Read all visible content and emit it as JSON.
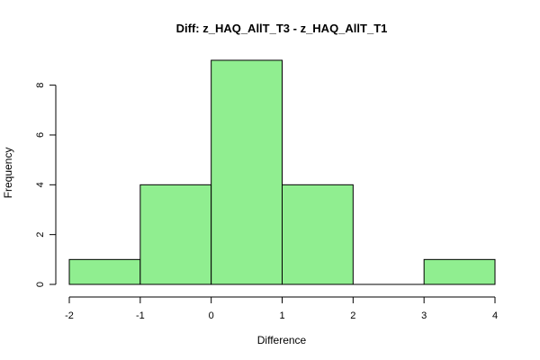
{
  "chart_data": {
    "type": "bar",
    "title": "Diff: z_HAQ_AllT_T3 - z_HAQ_AllT_T1",
    "xlabel": "Difference",
    "ylabel": "Frequency",
    "bins": [
      {
        "x0": -2,
        "x1": -1,
        "count": 1
      },
      {
        "x0": -1,
        "x1": 0,
        "count": 4
      },
      {
        "x0": 0,
        "x1": 1,
        "count": 9
      },
      {
        "x0": 1,
        "x1": 2,
        "count": 4
      },
      {
        "x0": 2,
        "x1": 3,
        "count": 0
      },
      {
        "x0": 3,
        "x1": 4,
        "count": 1
      }
    ],
    "xticks": [
      -2,
      -1,
      0,
      1,
      2,
      3,
      4
    ],
    "xtick_labels": [
      "-2",
      "-1",
      "0",
      "1",
      "2",
      "3",
      "4"
    ],
    "yticks": [
      0,
      2,
      4,
      6,
      8
    ],
    "ytick_labels": [
      "0",
      "2",
      "4",
      "6",
      "8"
    ],
    "xlim": [
      -2,
      4
    ],
    "ylim": [
      0,
      9
    ],
    "grid": false,
    "bar_color": "#90ee90",
    "edge_color": "#000000"
  }
}
